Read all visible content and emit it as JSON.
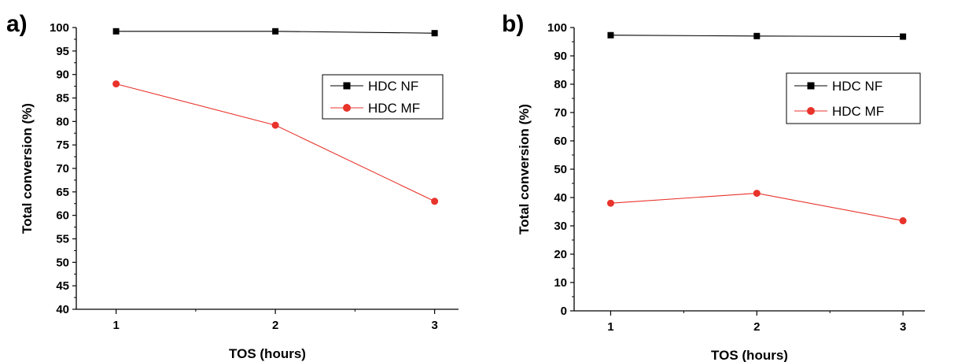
{
  "chart_data": [
    {
      "type": "line",
      "panel_label": "a)",
      "title": "",
      "xlabel": "TOS (hours)",
      "ylabel": "Total conversion (%)",
      "x": [
        1,
        2,
        3
      ],
      "xticks": [
        "1",
        "2",
        "3"
      ],
      "xlim": [
        0.75,
        3.15
      ],
      "ylim": [
        40,
        100
      ],
      "yticks": [
        "40",
        "45",
        "50",
        "55",
        "60",
        "65",
        "70",
        "75",
        "80",
        "85",
        "90",
        "95",
        "100"
      ],
      "grid": false,
      "legend_position": "top-right",
      "series": [
        {
          "name": "HDC NF",
          "values": [
            99.2,
            99.2,
            98.8
          ],
          "color": "#000000",
          "marker": "square"
        },
        {
          "name": "HDC MF",
          "values": [
            88.0,
            79.2,
            63.0
          ],
          "color": "#e8332b",
          "marker": "circle"
        }
      ]
    },
    {
      "type": "line",
      "panel_label": "b)",
      "title": "",
      "xlabel": "TOS (hours)",
      "ylabel": "Total conversion (%)",
      "x": [
        1,
        2,
        3
      ],
      "xticks": [
        "1",
        "2",
        "3"
      ],
      "xlim": [
        0.75,
        3.15
      ],
      "ylim": [
        0,
        100
      ],
      "yticks": [
        "0",
        "10",
        "20",
        "30",
        "40",
        "50",
        "60",
        "70",
        "80",
        "90",
        "100"
      ],
      "grid": false,
      "legend_position": "top-right",
      "series": [
        {
          "name": "HDC NF",
          "values": [
            97.3,
            97.0,
            96.8
          ],
          "color": "#000000",
          "marker": "square"
        },
        {
          "name": "HDC MF",
          "values": [
            38.0,
            41.5,
            31.8
          ],
          "color": "#e8332b",
          "marker": "circle"
        }
      ]
    }
  ]
}
